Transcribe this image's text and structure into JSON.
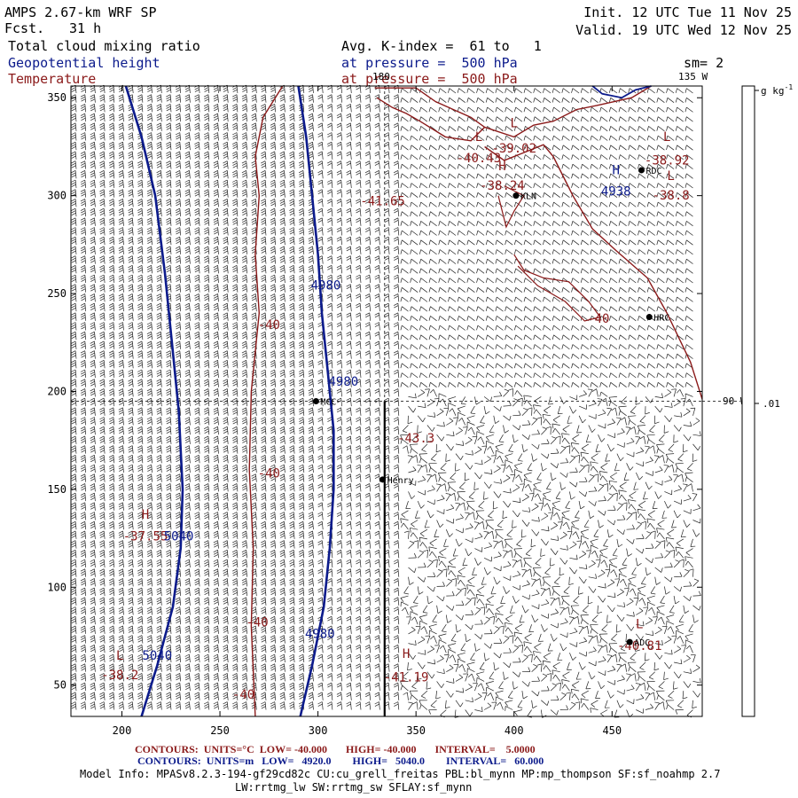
{
  "header": {
    "model": "AMPS 2.67-km WRF SP",
    "fcst_label": "Fcst.",
    "fcst_value": "31 h",
    "init": "Init. 12 UTC Tue 11 Nov 25",
    "valid": "Valid. 19 UTC Wed 12 Nov 25",
    "field1": "Total cloud mixing ratio",
    "field2": "Geopotential height",
    "field3": "Temperature",
    "avg_kindex": "Avg. K-index =  61 to   1",
    "pressure1": "at pressure =  500 hPa",
    "pressure2": "at pressure =  500 hPa",
    "sm": "sm= 2"
  },
  "axes": {
    "x_ticks": [
      "200",
      "250",
      "300",
      "350",
      "400",
      "450"
    ],
    "y_ticks": [
      "350",
      "300",
      "250",
      "200",
      "150",
      "100",
      "50"
    ]
  },
  "grid_labels": {
    "lon180": "180",
    "lon135": "135 W",
    "lon90": "90 W"
  },
  "colorbar": {
    "unit": "g kg",
    "unit_sup": "-1",
    "tick": ".01"
  },
  "stations": [
    {
      "name": "KLN",
      "x": 401,
      "y": 300
    },
    {
      "name": "RDC",
      "x": 465,
      "y": 313
    },
    {
      "name": "HRC",
      "x": 469,
      "y": 238
    },
    {
      "name": "MCC",
      "x": 299,
      "y": 195
    },
    {
      "name": "Henry",
      "x": 333,
      "y": 155
    },
    {
      "name": "ADC",
      "x": 459,
      "y": 72
    }
  ],
  "temp_labels": [
    {
      "text": "L",
      "x": 400,
      "y": 335
    },
    {
      "text": "-39.02",
      "x": 400,
      "y": 322
    },
    {
      "text": "L",
      "x": 382,
      "y": 328
    },
    {
      "text": "-40.43",
      "x": 382,
      "y": 317
    },
    {
      "text": "L",
      "x": 478,
      "y": 328
    },
    {
      "text": "-38.92",
      "x": 478,
      "y": 316
    },
    {
      "text": "H",
      "x": 394,
      "y": 313
    },
    {
      "text": "-38.24",
      "x": 394,
      "y": 303
    },
    {
      "text": "L",
      "x": 480,
      "y": 308
    },
    {
      "text": "-38.8",
      "x": 480,
      "y": 298
    },
    {
      "text": "-41.65",
      "x": 333,
      "y": 295
    },
    {
      "text": "-40",
      "x": 275,
      "y": 232
    },
    {
      "text": "-43.3",
      "x": 350,
      "y": 174
    },
    {
      "text": "-40",
      "x": 275,
      "y": 156
    },
    {
      "text": "H",
      "x": 212,
      "y": 135
    },
    {
      "text": "-37.55",
      "x": 212,
      "y": 124
    },
    {
      "text": "-40",
      "x": 269,
      "y": 80
    },
    {
      "text": "L",
      "x": 199,
      "y": 63
    },
    {
      "text": "-38.2",
      "x": 199,
      "y": 53
    },
    {
      "text": "H",
      "x": 345,
      "y": 64
    },
    {
      "text": "-41.19",
      "x": 345,
      "y": 52
    },
    {
      "text": "-40",
      "x": 262,
      "y": 43
    },
    {
      "text": "L",
      "x": 464,
      "y": 79
    },
    {
      "text": "-40.81",
      "x": 464,
      "y": 68
    },
    {
      "text": "-40",
      "x": 443,
      "y": 235
    }
  ],
  "height_labels": [
    {
      "text": "H",
      "x": 452,
      "y": 311
    },
    {
      "text": "4938",
      "x": 452,
      "y": 300
    },
    {
      "text": "4980",
      "x": 304,
      "y": 252
    },
    {
      "text": "4980",
      "x": 313,
      "y": 203
    },
    {
      "text": "5040",
      "x": 229,
      "y": 124
    },
    {
      "text": "4980",
      "x": 301,
      "y": 74
    },
    {
      "text": "5040",
      "x": 218,
      "y": 63
    }
  ],
  "legend": {
    "temp_line": "CONTOURS:  UNITS=°C  LOW= -40.000       HIGH= -40.000       INTERVAL=    5.0000",
    "height_line": "CONTOURS:  UNITS=m   LOW=   4920.0        HIGH=   5040.0        INTERVAL=   60.000"
  },
  "model_info": {
    "line1": "Model Info: MPASv8.2.3-194-gf29cd82c CU:cu_grell_freitas PBL:bl_mynn MP:mp_thompson SF:sf_noahmp 2.7",
    "line2": "LW:rrtmg_lw SW:rrtmg_sw SFLAY:sf_mynn"
  },
  "colors": {
    "temperature": "#8b1a1a",
    "geopotential": "#0c1b8c",
    "wind_barbs": "#000000"
  }
}
